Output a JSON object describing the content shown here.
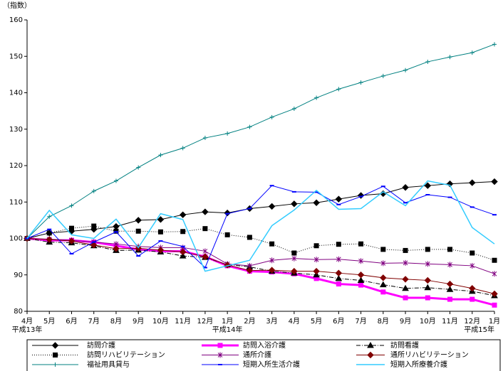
{
  "chart_data": {
    "type": "line",
    "y_label": "（指数）",
    "categories": [
      "4月",
      "5月",
      "6月",
      "7月",
      "8月",
      "9月",
      "10月",
      "11月",
      "12月",
      "1月",
      "2月",
      "3月",
      "4月",
      "5月",
      "6月",
      "7月",
      "8月",
      "9月",
      "10月",
      "11月",
      "12月",
      "1月"
    ],
    "year_labels": [
      "平成13年",
      null,
      null,
      null,
      null,
      null,
      null,
      null,
      null,
      "平成14年",
      null,
      null,
      null,
      null,
      null,
      null,
      null,
      null,
      null,
      null,
      null,
      "平成15年"
    ],
    "ylim": [
      80,
      160
    ],
    "yticks": [
      80,
      90,
      100,
      110,
      120,
      130,
      140,
      150,
      160
    ],
    "legend": "bottom",
    "series": [
      {
        "name": "訪問介護",
        "color": "#000000",
        "marker": "diamond",
        "dash": "none",
        "width": 1,
        "values": [
          100,
          101.5,
          102,
          102.5,
          103.3,
          105,
          105.2,
          106.5,
          107.3,
          107,
          108.2,
          108.8,
          109.5,
          109.8,
          110.8,
          111.8,
          112.3,
          114,
          114.5,
          115,
          115.3,
          115.6
        ]
      },
      {
        "name": "訪問入浴介護",
        "color": "#ff00ff",
        "marker": "square",
        "dash": "none",
        "width": 3,
        "values": [
          100,
          99.5,
          99.5,
          99,
          98,
          97,
          96.5,
          96.5,
          95,
          92.5,
          91,
          90.8,
          90.3,
          89,
          87.5,
          87.2,
          85.3,
          83.7,
          83.7,
          83.3,
          83.3,
          81.7
        ]
      },
      {
        "name": "訪問看護",
        "color": "#000000",
        "marker": "triangle",
        "dash": "6 2 1 2",
        "width": 1,
        "values": [
          100,
          99,
          98.8,
          98,
          96.7,
          96.8,
          96.3,
          95.2,
          94.8,
          92.8,
          92.2,
          91,
          90.5,
          90,
          89,
          88.5,
          87.3,
          86.3,
          86.5,
          86,
          85.5,
          84.3
        ]
      },
      {
        "name": "訪問リハビリテーション",
        "color": "#000000",
        "marker": "square",
        "dash": "1 2",
        "width": 1,
        "values": [
          100,
          101.5,
          102.8,
          103.4,
          102,
          102,
          101.8,
          101.9,
          102.7,
          101,
          100.3,
          98.5,
          96,
          98,
          98.4,
          98.5,
          97,
          96.7,
          97,
          97,
          96,
          94
        ]
      },
      {
        "name": "通所介護",
        "color": "#800080",
        "marker": "asterisk",
        "dash": "none",
        "width": 1,
        "values": [
          100,
          99.8,
          99.5,
          99,
          98.5,
          97.8,
          97.5,
          97.5,
          96.5,
          93,
          92.5,
          94,
          94.5,
          94.2,
          94.3,
          93.8,
          93.2,
          93.3,
          93,
          92.8,
          92.5,
          90.3
        ]
      },
      {
        "name": "通所リハビリテーション",
        "color": "#800000",
        "marker": "diamond",
        "dash": "none",
        "width": 1,
        "values": [
          100,
          99.7,
          99.3,
          98.2,
          97.2,
          97.3,
          96.8,
          96.3,
          95,
          92.7,
          91.2,
          91.3,
          91,
          91,
          90.5,
          90,
          89.2,
          88.8,
          88.5,
          87.5,
          86.3,
          84.8
        ]
      },
      {
        "name": "福祉用具貸与",
        "color": "#008080",
        "marker": "plus",
        "dash": "none",
        "width": 1,
        "values": [
          100,
          106,
          109,
          113,
          115.8,
          119.5,
          122.9,
          124.8,
          127.6,
          128.8,
          130.6,
          133.3,
          135.6,
          138.6,
          141,
          142.8,
          144.6,
          146.2,
          148.5,
          149.8,
          151,
          153.3
        ]
      },
      {
        "name": "短期入所生活介護",
        "color": "#0000ff",
        "marker": "dash",
        "dash": "none",
        "width": 1,
        "values": [
          100,
          102.5,
          95.8,
          99,
          101.8,
          95.2,
          99.3,
          97.8,
          92,
          106.8,
          108.2,
          114.5,
          112.8,
          112.7,
          109.3,
          111.5,
          114.3,
          109.8,
          112,
          111.3,
          108.6,
          106.5
        ]
      },
      {
        "name": "短期入所療養介護",
        "color": "#33ccff",
        "marker": "none",
        "dash": "none",
        "width": 1.5,
        "values": [
          100,
          107.7,
          101,
          100,
          105.3,
          97.5,
          106.8,
          105.2,
          91,
          92.5,
          94,
          103.5,
          107.8,
          113.2,
          108,
          108.2,
          112.8,
          109,
          115.8,
          114.6,
          103,
          98.5
        ]
      }
    ]
  }
}
